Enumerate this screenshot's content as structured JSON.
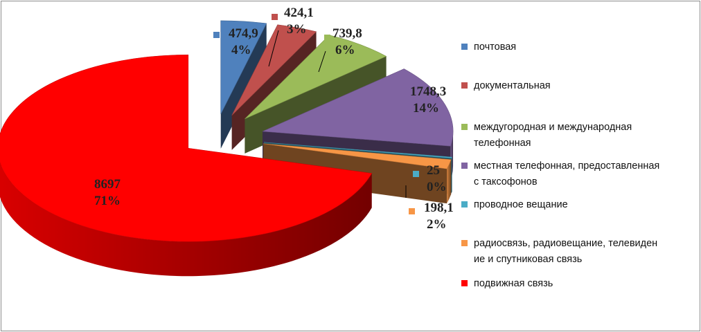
{
  "chart_data": {
    "type": "pie",
    "title": "",
    "legend_position": "right",
    "slices": [
      {
        "label": "почтовая",
        "value": 474.9,
        "value_text": "474,9",
        "percent_text": "4%",
        "color": "#4f81bd"
      },
      {
        "label": "документальная",
        "value": 424.1,
        "value_text": "424,1",
        "percent_text": "3%",
        "color": "#c0504d"
      },
      {
        "label": "междугородная и международная телефонная",
        "value": 739.8,
        "value_text": "739,8",
        "percent_text": "6%",
        "color": "#9bbb59"
      },
      {
        "label": "местная телефонная, предоставленная с таксофонов",
        "value": 1748.3,
        "value_text": "1748,3",
        "percent_text": "14%",
        "color": "#8064a2"
      },
      {
        "label": "проводное вещание",
        "value": 25,
        "value_text": "25",
        "percent_text": "0%",
        "color": "#4bacc6"
      },
      {
        "label": "радиосвязь, радиовещание, телевидение и спутниковая связь",
        "value": 198.1,
        "value_text": "198,1",
        "percent_text": "2%",
        "color": "#f79646"
      },
      {
        "label": "подвижная связь",
        "value": 8697,
        "value_text": "8697",
        "percent_text": "71%",
        "color": "#ff0000"
      }
    ]
  },
  "legend": {
    "items": [
      {
        "lines": [
          "почтовая"
        ]
      },
      {
        "lines": [
          "документальная"
        ]
      },
      {
        "lines": [
          "междугородная и международная",
          "телефонная"
        ]
      },
      {
        "lines": [
          "местная телефонная, предоставленная",
          "с таксофонов"
        ]
      },
      {
        "lines": [
          "проводное вещание"
        ]
      },
      {
        "lines": [
          "радиосвязь, радиовещание, телевиден",
          "ие и спутниковая связь"
        ]
      },
      {
        "lines": [
          "подвижная связь"
        ]
      }
    ]
  }
}
